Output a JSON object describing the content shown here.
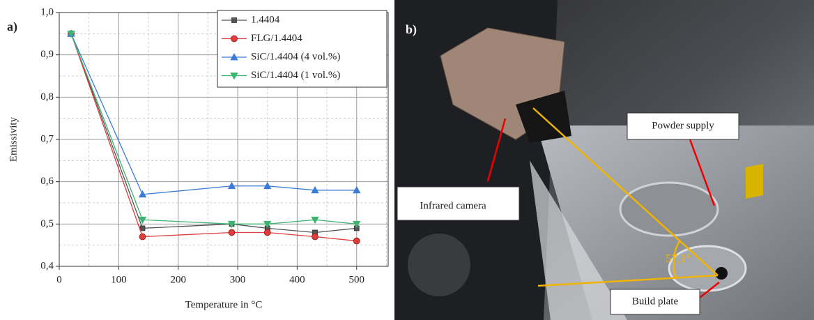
{
  "chart_data": {
    "type": "line",
    "panel_label": "a)",
    "x_label": "Temperature in °C",
    "y_label": "Emissivity",
    "x": [
      20,
      140,
      290,
      350,
      430,
      500
    ],
    "series": [
      {
        "name": "1.4404",
        "color": "#555555",
        "marker": "square",
        "values": [
          0.95,
          0.49,
          0.5,
          0.49,
          0.48,
          0.49
        ]
      },
      {
        "name": "FLG/1.4404",
        "color": "#e03c3c",
        "marker": "circle",
        "values": [
          0.95,
          0.47,
          0.48,
          0.48,
          0.47,
          0.46
        ]
      },
      {
        "name": "SiC/1.4404 (4 vol.%)",
        "color": "#3a7bd5",
        "marker": "triangle-up",
        "values": [
          0.95,
          0.57,
          0.59,
          0.59,
          0.58,
          0.58
        ]
      },
      {
        "name": "SiC/1.4404 (1 vol.%)",
        "color": "#3cb371",
        "marker": "triangle-down",
        "values": [
          0.95,
          0.51,
          0.5,
          0.5,
          0.51,
          0.5
        ]
      }
    ],
    "xlim": [
      0,
      553
    ],
    "xticks": [
      0,
      100,
      200,
      300,
      400,
      500
    ],
    "ylim": [
      0.4,
      1.0
    ],
    "yticks": [
      {
        "value": 0.4,
        "label": "0,4"
      },
      {
        "value": 0.5,
        "label": "0,5"
      },
      {
        "value": 0.6,
        "label": "0,6"
      },
      {
        "value": 0.7,
        "label": "0,7"
      },
      {
        "value": 0.8,
        "label": "0,8"
      },
      {
        "value": 0.9,
        "label": "0,9"
      },
      {
        "value": 1.0,
        "label": "1,0"
      }
    ],
    "grid": true,
    "minor_grid": true,
    "legend": "upper right"
  },
  "photo": {
    "panel_label": "b)",
    "labels": {
      "powder": "Powder supply",
      "camera": "Infrared camera",
      "plate": "Build plate",
      "angle": "57,1°"
    }
  }
}
